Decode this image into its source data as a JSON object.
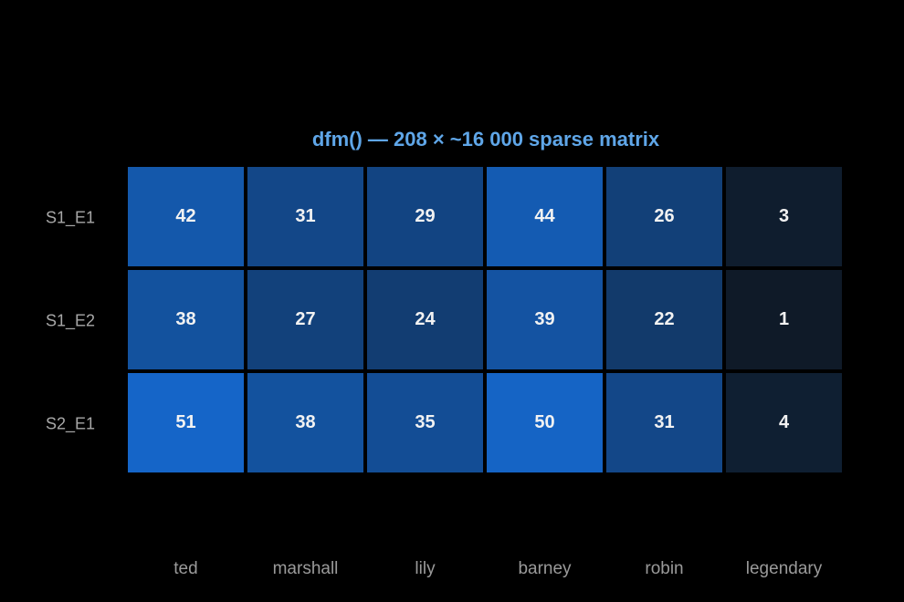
{
  "chart_data": {
    "type": "heatmap",
    "title": "dfm()  —  208 × ~16 000 sparse matrix",
    "x": [
      "ted",
      "marshall",
      "lily",
      "barney",
      "robin",
      "legendary"
    ],
    "y": [
      "S1_E1",
      "S1_E2",
      "S2_E1"
    ],
    "values": [
      [
        42,
        31,
        29,
        44,
        26,
        3
      ],
      [
        38,
        27,
        24,
        39,
        22,
        1
      ],
      [
        51,
        38,
        35,
        50,
        31,
        4
      ]
    ],
    "colors": [
      "#0f1a28",
      "#1565c8"
    ]
  }
}
